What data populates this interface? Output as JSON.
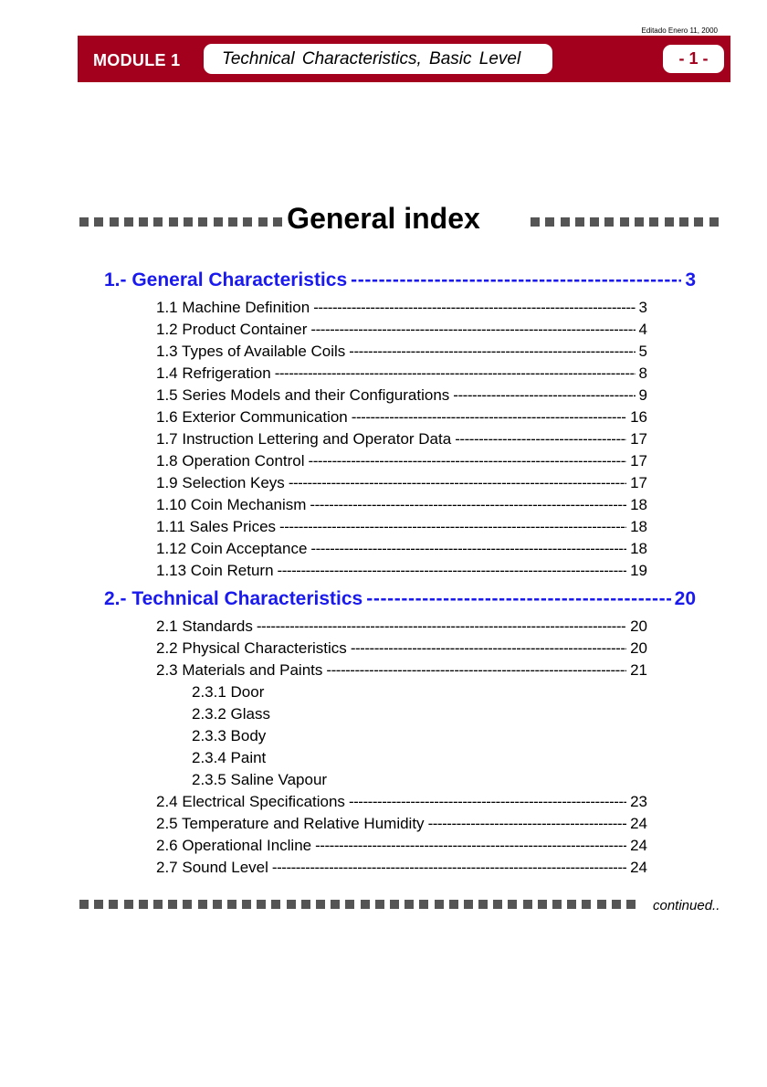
{
  "header": {
    "edited": "Editado Enero 11, 2000",
    "module": "MODULE 1",
    "title": "Technical Characteristics, Basic Level",
    "page": "- 1 -"
  },
  "heading": "General index",
  "sections": [
    {
      "label": "1.- General Characteristics",
      "page": "3",
      "items": [
        {
          "label": "1.1 Machine Definition",
          "page": "3"
        },
        {
          "label": "1.2 Product Container",
          "page": "4"
        },
        {
          "label": "1.3 Types of Available Coils",
          "page": "5"
        },
        {
          "label": "1.4 Refrigeration",
          "page": "8"
        },
        {
          "label": "1.5 Series Models and their Configurations",
          "page": "9"
        },
        {
          "label": "1.6 Exterior Communication",
          "page": "16"
        },
        {
          "label": "1.7 Instruction Lettering and Operator Data",
          "page": "17"
        },
        {
          "label": "1.8 Operation Control",
          "page": "17"
        },
        {
          "label": "1.9 Selection Keys",
          "page": "17"
        },
        {
          "label": "1.10 Coin Mechanism",
          "page": "18"
        },
        {
          "label": "1.11 Sales Prices",
          "page": "18"
        },
        {
          "label": "1.12 Coin Acceptance",
          "page": "18"
        },
        {
          "label": "1.13 Coin Return",
          "page": "19"
        }
      ]
    },
    {
      "label": "2.- Technical Characteristics",
      "page": "20",
      "items": [
        {
          "label": "2.1 Standards",
          "page": "20"
        },
        {
          "label": "2.2 Physical Characteristics",
          "page": "20"
        },
        {
          "label": "2.3 Materials and Paints",
          "page": "21"
        },
        {
          "label": "2.3.1 Door"
        },
        {
          "label": "2.3.2 Glass"
        },
        {
          "label": "2.3.3 Body"
        },
        {
          "label": "2.3.4 Paint"
        },
        {
          "label": "2.3.5 Saline Vapour"
        },
        {
          "label": "2.4 Electrical Specifications",
          "page": "23"
        },
        {
          "label": "2.5 Temperature and Relative Humidity",
          "page": "24"
        },
        {
          "label": "2.6 Operational Incline",
          "page": "24"
        },
        {
          "label": "2.7 Sound Level",
          "page": "24"
        }
      ]
    }
  ],
  "continued": "continued.."
}
